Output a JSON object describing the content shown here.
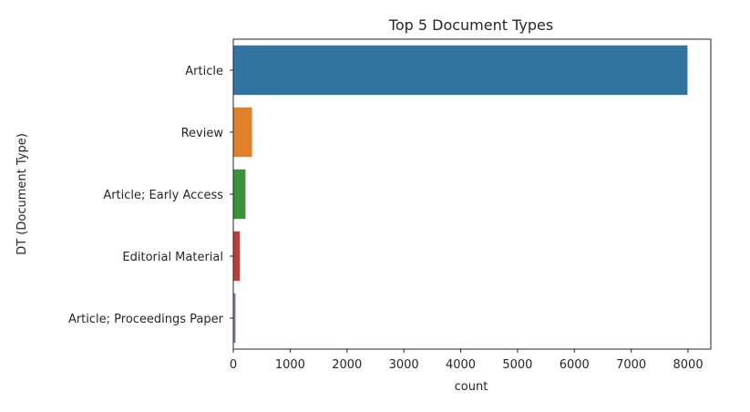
{
  "chart_data": {
    "type": "bar",
    "orientation": "horizontal",
    "title": "Top 5 Document Types",
    "xlabel": "count",
    "ylabel": "DT (Document Type)",
    "categories": [
      "Article",
      "Review",
      "Article; Early Access",
      "Editorial Material",
      "Article; Proceedings Paper"
    ],
    "values": [
      7990,
      330,
      215,
      115,
      40
    ],
    "colors": [
      "#3274a1",
      "#e1812c",
      "#3a923a",
      "#c03d3e",
      "#9372b2"
    ],
    "xlim": [
      0,
      8400
    ],
    "xticks": [
      0,
      1000,
      2000,
      3000,
      4000,
      5000,
      6000,
      7000,
      8000
    ],
    "grid": false,
    "legend": "none"
  }
}
